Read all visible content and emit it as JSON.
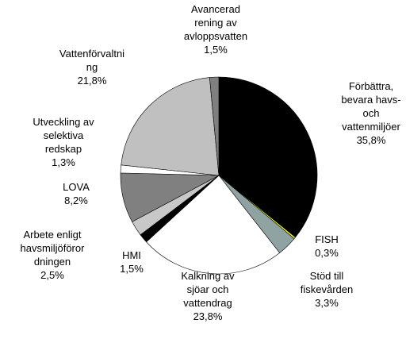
{
  "chart_data": {
    "type": "pie",
    "categories": [
      "Förbättra,\nbevara havs-\noch\nvattenmiljöer",
      "FISH",
      "Stöd till\nfiskevården",
      "Kalkning av\nsjöar och\nvattendrag",
      "HMI",
      "Arbete enligt\nhavsmiljöföror\ndningen",
      "LOVA",
      "Utveckling av\nselektiva\nredskap",
      "Vattenförvaltni\nng",
      "Avancerad\nrening av\navloppsvatten"
    ],
    "values": [
      35.8,
      0.3,
      3.3,
      23.8,
      1.5,
      2.5,
      8.2,
      1.3,
      21.8,
      1.5
    ],
    "value_labels": [
      "35,8%",
      "0,3%",
      "3,3%",
      "23,8%",
      "1,5%",
      "2,5%",
      "8,2%",
      "1,3%",
      "21,8%",
      "1,5%"
    ],
    "colors": [
      "#000000",
      "#ffff00",
      "#8fa3a3",
      "#ffffff",
      "#000000",
      "#c8c8c8",
      "#808080",
      "#ffffff",
      "#c0c0c0",
      "#808080"
    ]
  }
}
